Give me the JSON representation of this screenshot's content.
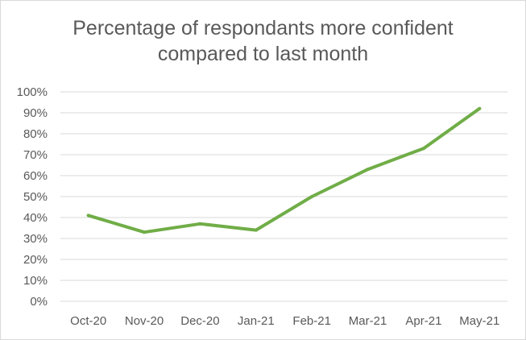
{
  "chart_data": {
    "type": "line",
    "title_lines": [
      "Percentage of respondants more confident",
      "compared to last month"
    ],
    "categories": [
      "Oct-20",
      "Nov-20",
      "Dec-20",
      "Jan-21",
      "Feb-21",
      "Mar-21",
      "Apr-21",
      "May-21"
    ],
    "series": [
      {
        "values": [
          41,
          33,
          37,
          34,
          50,
          63,
          73,
          92
        ],
        "color": "#70ad47"
      }
    ],
    "y_ticks": [
      "0%",
      "10%",
      "20%",
      "30%",
      "40%",
      "50%",
      "60%",
      "70%",
      "80%",
      "90%",
      "100%"
    ],
    "ylim": [
      0,
      100
    ],
    "grid": true,
    "legend": "none",
    "colors": {
      "gridline": "#d9d9d9",
      "text": "#595959",
      "line": "#70ad47"
    }
  }
}
